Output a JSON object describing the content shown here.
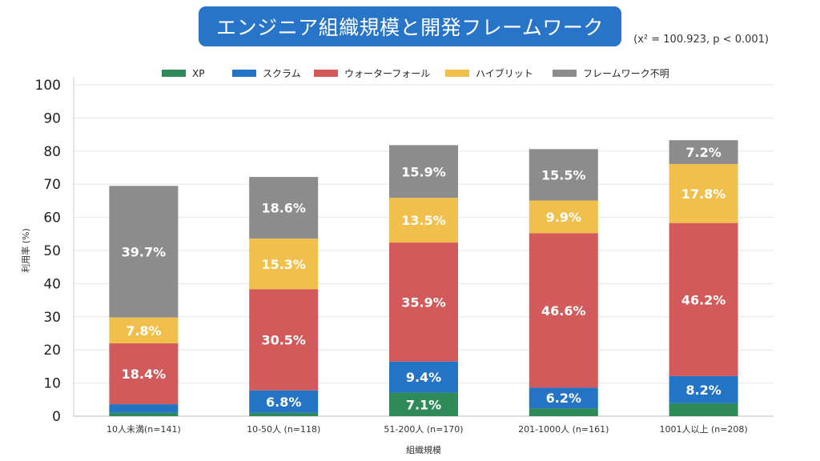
{
  "title": "エンジニア組織規模と開発フレームワーク",
  "stat": "(x² = 100.923, p < 0.001)",
  "chart_data": {
    "type": "bar",
    "stacked": true,
    "categories": [
      "10人未満(n=141)",
      "10-50人 (n=118)",
      "51-200人 (n=170)",
      "201-1000人 (n=161)",
      "1001人以上 (n=208)"
    ],
    "series": [
      {
        "name": "XP",
        "color": "#2e8b57",
        "values": [
          1.0,
          1.0,
          7.1,
          2.4,
          3.9
        ]
      },
      {
        "name": "スクラム",
        "color": "#2474c6",
        "values": [
          2.6,
          6.8,
          9.4,
          6.2,
          8.2
        ]
      },
      {
        "name": "ウォーターフォール",
        "color": "#d35a5a",
        "values": [
          18.4,
          30.5,
          35.9,
          46.6,
          46.2
        ]
      },
      {
        "name": "ハイブリット",
        "color": "#f1c04c",
        "values": [
          7.8,
          15.3,
          13.5,
          9.9,
          17.8
        ]
      },
      {
        "name": "フレームワーク不明",
        "color": "#8c8c8c",
        "values": [
          39.7,
          18.6,
          15.9,
          15.5,
          7.2
        ]
      }
    ],
    "labels": [
      [
        "",
        "",
        "18.4%",
        "7.8%",
        "39.7%"
      ],
      [
        "",
        "6.8%",
        "30.5%",
        "15.3%",
        "18.6%"
      ],
      [
        "7.1%",
        "9.4%",
        "35.9%",
        "13.5%",
        "15.9%"
      ],
      [
        "",
        "6.2%",
        "46.6%",
        "9.9%",
        "15.5%"
      ],
      [
        "",
        "8.2%",
        "46.2%",
        "17.8%",
        "7.2%"
      ]
    ],
    "xlabel": "組織規模",
    "ylabel": "利用率 (%)",
    "ylim": [
      0,
      100
    ],
    "yticks": [
      0,
      10,
      20,
      30,
      40,
      50,
      60,
      70,
      80,
      90,
      100
    ],
    "grid": true,
    "legend": "top"
  }
}
